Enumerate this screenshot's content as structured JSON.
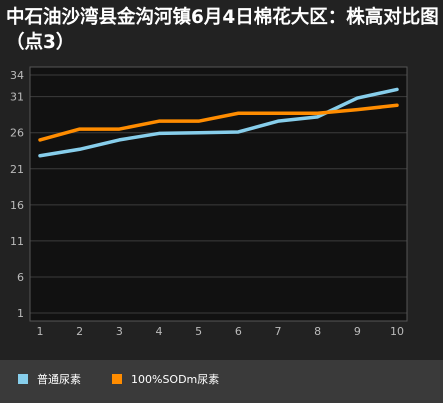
{
  "chart_data": {
    "type": "line",
    "title": "中石油沙湾县金沟河镇6月4日棉花大区：株高对比图（点3）",
    "x": [
      1,
      2,
      3,
      4,
      5,
      6,
      7,
      8,
      9,
      10
    ],
    "ylim": [
      1,
      34
    ],
    "yticks": [
      1,
      6,
      11,
      16,
      21,
      26,
      31,
      34
    ],
    "grid": true,
    "legend_position": "bottom",
    "series": [
      {
        "name": "普通尿素",
        "color": "#87ceeb",
        "values": [
          22.8,
          23.7,
          25.0,
          25.9,
          26.0,
          26.1,
          27.6,
          28.2,
          30.8,
          32.0
        ]
      },
      {
        "name": "100%SODm尿素",
        "color": "#ff8c00",
        "values": [
          25.0,
          26.5,
          26.5,
          27.6,
          27.6,
          28.7,
          28.7,
          28.7,
          29.2,
          29.8
        ]
      }
    ]
  }
}
